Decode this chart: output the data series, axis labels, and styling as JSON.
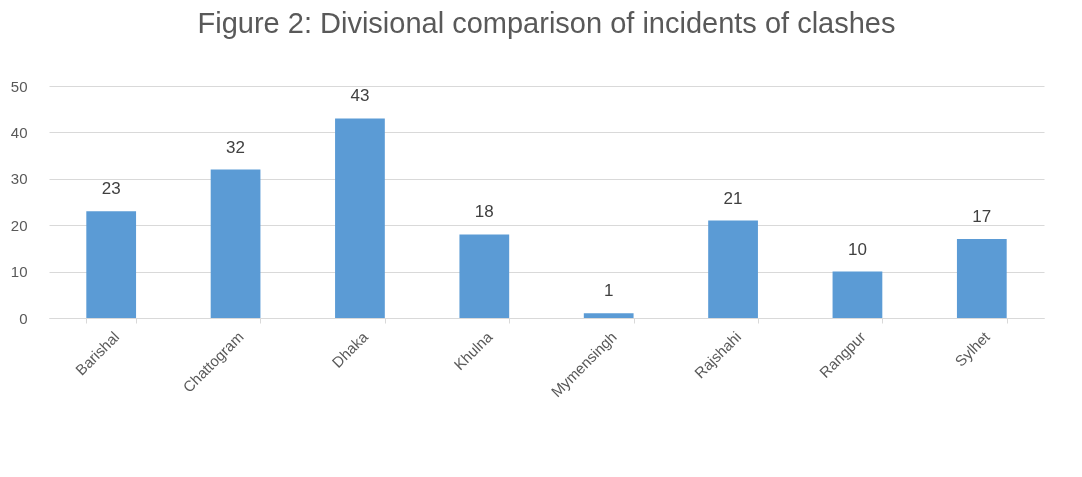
{
  "chart_data": {
    "type": "bar",
    "title": "Figure 2: Divisional comparison of incidents of clashes",
    "categories": [
      "Barishal",
      "Chattogram",
      "Dhaka",
      "Khulna",
      "Mymensingh",
      "Rajshahi",
      "Rangpur",
      "Sylhet"
    ],
    "values": [
      23,
      32,
      43,
      18,
      1,
      21,
      10,
      17
    ],
    "color": "#5b9bd5",
    "ylim": [
      0,
      50
    ],
    "yticks": [
      0,
      10,
      20,
      30,
      40,
      50
    ],
    "grid": true,
    "data_labels": true
  }
}
